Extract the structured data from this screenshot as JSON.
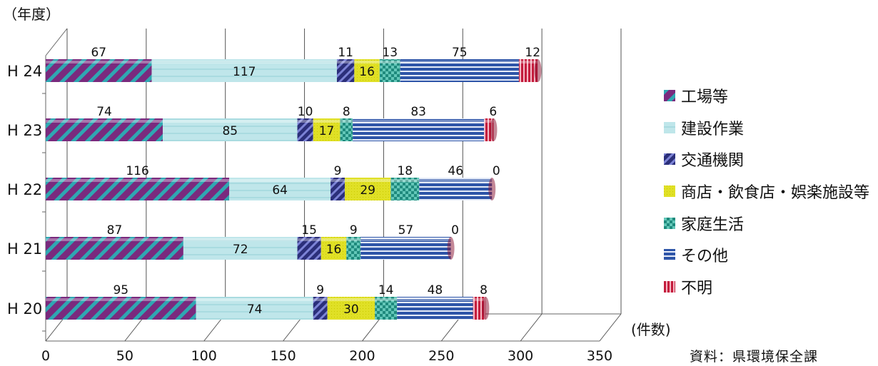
{
  "chart_data": {
    "type": "bar",
    "orientation": "horizontal",
    "stacked": true,
    "ylabel": "（年度）",
    "xlabel": "(件数)",
    "xlim": [
      0,
      350
    ],
    "x_ticks": [
      "0",
      "50",
      "100",
      "150",
      "200",
      "250",
      "300",
      "350"
    ],
    "categories": [
      "H 24",
      "H 23",
      "H 22",
      "H 21",
      "H 20"
    ],
    "series": [
      {
        "name": "工場等",
        "values": [
          67,
          74,
          116,
          87,
          95
        ],
        "color": "#7a2a7e"
      },
      {
        "name": "建設作業",
        "values": [
          117,
          85,
          64,
          72,
          74
        ],
        "color": "#bfe6ea"
      },
      {
        "name": "交通機関",
        "values": [
          11,
          10,
          9,
          15,
          9
        ],
        "color": "#3a3f8f"
      },
      {
        "name": "商店・飲食店・娯楽施設等",
        "values": [
          16,
          17,
          29,
          16,
          30
        ],
        "color": "#e3e334"
      },
      {
        "name": "家庭生活",
        "values": [
          13,
          8,
          18,
          9,
          14
        ],
        "color": "#2f9e8e"
      },
      {
        "name": "その他",
        "values": [
          75,
          83,
          46,
          57,
          48
        ],
        "color": "#3f66b5"
      },
      {
        "name": "不明",
        "values": [
          12,
          6,
          0,
          0,
          8
        ],
        "color": "#d62a4a"
      }
    ],
    "grid": true,
    "legend": "right"
  },
  "source_text": "資料：県環境保全課"
}
